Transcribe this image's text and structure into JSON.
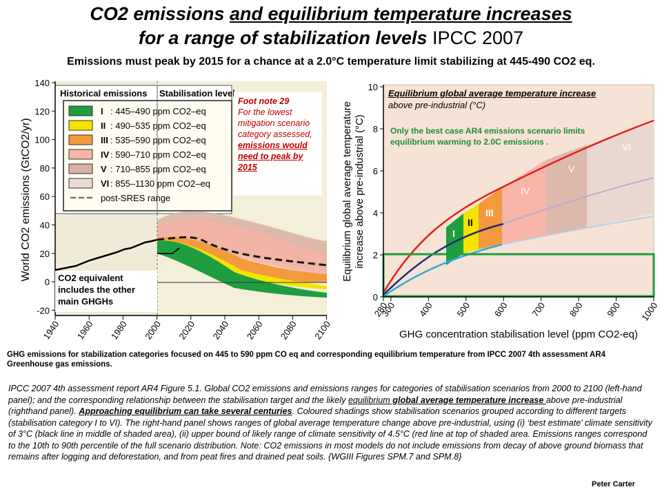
{
  "title": {
    "line1_part1": "CO2 emissions ",
    "line1_part2": "and equilibrium temperature increases",
    "line2_part1": "for a range of stabilization levels",
    "line2_part2": " IPCC 2007"
  },
  "subtitle": "Emissions  must  peak by 2015 for a chance at a 2.0°C temperature limit stabilizing  at 445-490 CO2 eq.",
  "left_chart": {
    "ylabel": "World CO2 emissions (GtCO2/yr)",
    "y_ticks": [
      "140",
      "120",
      "100",
      "80",
      "60",
      "40",
      "20",
      "0",
      "-20"
    ],
    "x_ticks": [
      "1940",
      "1960",
      "1980",
      "2000",
      "2020",
      "2040",
      "2060",
      "2080",
      "2100"
    ],
    "legend_header_hist": "Historical emissions",
    "legend_header_stab": "Stabilisation level",
    "legend": [
      {
        "roman": "I",
        "label": ": 445–490 ppm CO2–eq",
        "color": "#1e9e3e"
      },
      {
        "roman": "II",
        "label": ": 490–535 ppm CO2–eq",
        "color": "#f5e400"
      },
      {
        "roman": "III",
        "label": ": 535–590 ppm CO2–eq",
        "color": "#f39a3e"
      },
      {
        "roman": "IV",
        "label": ": 590–710 ppm CO2–eq",
        "color": "#f7b5a7"
      },
      {
        "roman": "V",
        "label": ": 710–855 ppm CO2–eq",
        "color": "#d8b2a6"
      },
      {
        "roman": "VI",
        "label": ": 855–1130 ppm CO2–eq",
        "color": "#eadad2"
      },
      {
        "roman": "",
        "label": "post-SRES range",
        "color": "#8b6a50"
      }
    ],
    "footnote_title": "Foot note 29",
    "footnote_body": "For the lowest mitigation scenario category assessed, ",
    "footnote_bold": "emissions would need to peak by 2015",
    "co2_box": "CO2 equivalent includes the other main GHGHs"
  },
  "right_chart": {
    "title_bold": "Equilibrium global average temperature increase",
    "title_rest": "above pre-industrial (°C)",
    "best_case": "Only the best case AR4 emissions scenario limits equilibrium warming to 2.0C emissions .",
    "ylabel_line1": "Equilibrium global average temperature",
    "ylabel_line2": "increase above pre-industrial (°C)",
    "xlabel": "GHG concentration stabilisation level (ppm CO2-eq)",
    "y_ticks": [
      "10",
      "8",
      "6",
      "4",
      "2",
      "0"
    ],
    "x_ticks": [
      "280",
      "300",
      "400",
      "500",
      "600",
      "700",
      "800",
      "900",
      "1000"
    ],
    "band_labels": [
      "I",
      "II",
      "III",
      "IV",
      "V",
      "VI"
    ]
  },
  "caption": "GHG emissions for stabilization categories focused  on 445  to 590 ppm CO eq and corresponding equilibrium temperature from IPCC 2007  4th assessment AR4 Greenhouse gas emissions.",
  "long_caption": {
    "p1": "IPCC 2007 4th assessment report AR4 Figure 5.1. Global CO2 emissions and emissions ranges for categories of stabilisation scenarios from 2000 to 2100 (left-hand panel); and the corresponding relationship between the stabilisation target and the likely ",
    "u1": "equilibrium",
    "b1": " global average temperature increase ",
    "p2": "above pre-industrial (righthand panel). ",
    "b2": "Approaching  equilibrium  can take several centuries",
    "p3": ". Coloured shadings show stabilisation scenarios grouped according to different targets (stabilisation category I to VI). The right-hand panel shows ranges of global average temperature change above pre-industrial, using (i) ‘best estimate’ climate sensitivity of 3°C (black line in middle of shaded area), (ii) upper bound of likely range of climate sensitivity of 4.5°C (red line at top of shaded area. Emissions ranges correspond to the 10th to 90th percentile of the full scenario distribution. Note: CO2 emissions in most models do not include emissions from decay of above ground biomass that remains after logging and deforestation, and from peat fires and drained peat soils. {WGIII Figures SPM.7 and SPM.8}"
  },
  "author": "Peter Carter",
  "colors": {
    "green": "#1e9e3e",
    "yellow": "#f5e400",
    "orange": "#f39a3e",
    "red": "#e02020",
    "navy": "#1f2a7a",
    "lightblue": "#2ea8e0"
  }
}
